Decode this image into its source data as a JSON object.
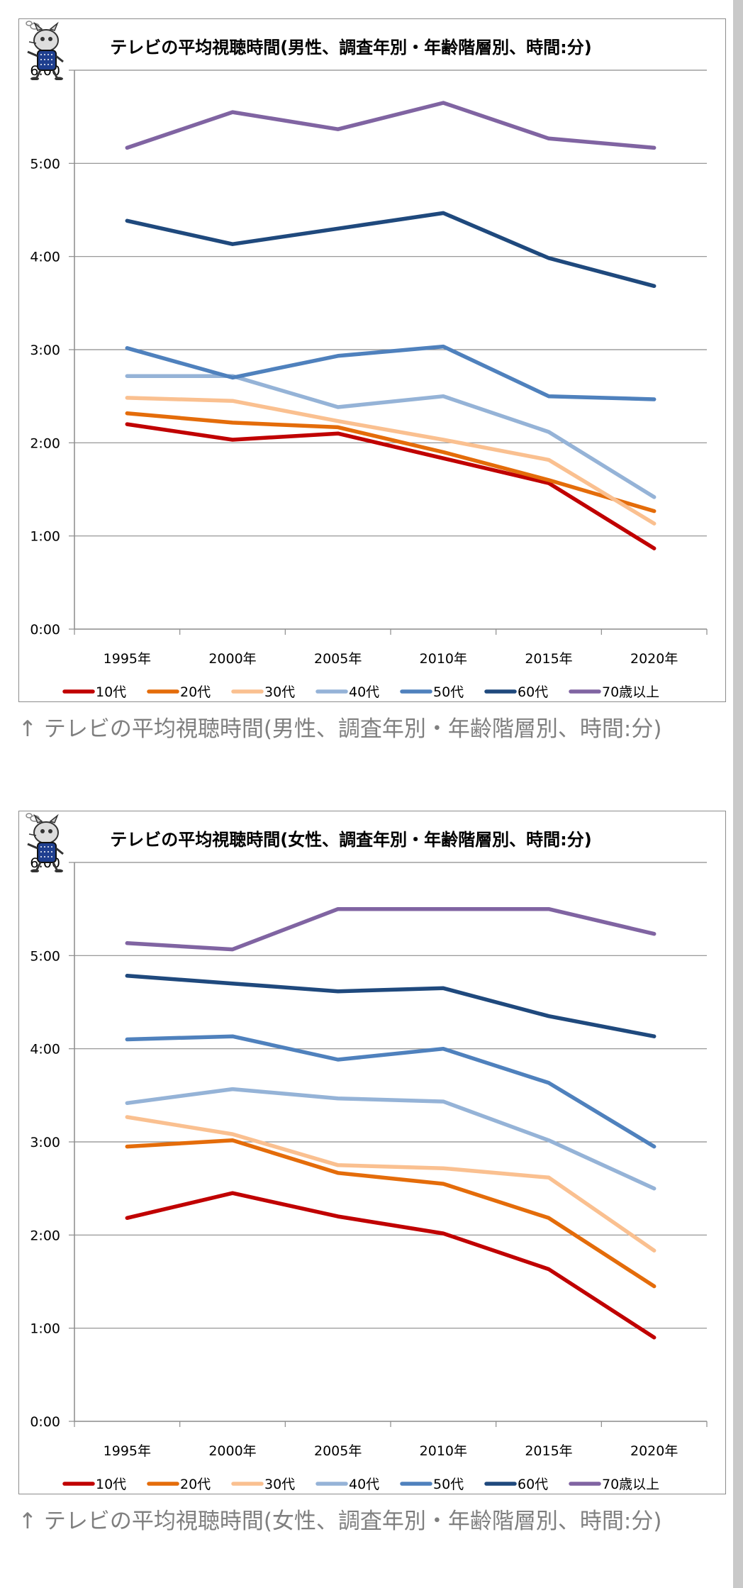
{
  "chart_data": [
    {
      "type": "line",
      "title": "テレビの平均視聴時間(男性、調査年別・年齢階層別、時間:分)",
      "x": [
        "1995年",
        "2000年",
        "2005年",
        "2010年",
        "2015年",
        "2020年"
      ],
      "ylim": [
        0,
        360
      ],
      "y_unit": "minutes",
      "y_ticks": [
        "0:00",
        "1:00",
        "2:00",
        "3:00",
        "4:00",
        "5:00",
        "6:00"
      ],
      "grid": true,
      "legend_position": "bottom",
      "series": [
        {
          "name": "10代",
          "color": "#c00000",
          "values": [
            132,
            122,
            126,
            110,
            94,
            52
          ]
        },
        {
          "name": "20代",
          "color": "#e46c0a",
          "values": [
            139,
            133,
            130,
            114,
            96,
            76
          ]
        },
        {
          "name": "30代",
          "color": "#fac090",
          "values": [
            149,
            147,
            134,
            122,
            109,
            68
          ]
        },
        {
          "name": "40代",
          "color": "#95b3d7",
          "values": [
            163,
            163,
            143,
            150,
            127,
            85
          ]
        },
        {
          "name": "50代",
          "color": "#4f81bd",
          "values": [
            181,
            162,
            176,
            182,
            150,
            148
          ]
        },
        {
          "name": "60代",
          "color": "#1f497d",
          "values": [
            263,
            248,
            258,
            268,
            239,
            221
          ]
        },
        {
          "name": "70歳以上",
          "color": "#8064a2",
          "values": [
            310,
            333,
            322,
            339,
            316,
            310
          ]
        }
      ]
    },
    {
      "type": "line",
      "title": "テレビの平均視聴時間(女性、調査年別・年齢階層別、時間:分)",
      "x": [
        "1995年",
        "2000年",
        "2005年",
        "2010年",
        "2015年",
        "2020年"
      ],
      "ylim": [
        0,
        360
      ],
      "y_unit": "minutes",
      "y_ticks": [
        "0:00",
        "1:00",
        "2:00",
        "3:00",
        "4:00",
        "5:00",
        "6:00"
      ],
      "grid": true,
      "legend_position": "bottom",
      "series": [
        {
          "name": "10代",
          "color": "#c00000",
          "values": [
            131,
            147,
            132,
            121,
            98,
            54
          ]
        },
        {
          "name": "20代",
          "color": "#e46c0a",
          "values": [
            177,
            181,
            160,
            153,
            131,
            87
          ]
        },
        {
          "name": "30代",
          "color": "#fac090",
          "values": [
            196,
            185,
            165,
            163,
            157,
            110
          ]
        },
        {
          "name": "40代",
          "color": "#95b3d7",
          "values": [
            205,
            214,
            208,
            206,
            181,
            150
          ]
        },
        {
          "name": "50代",
          "color": "#4f81bd",
          "values": [
            246,
            248,
            233,
            240,
            218,
            177
          ]
        },
        {
          "name": "60代",
          "color": "#1f497d",
          "values": [
            287,
            282,
            277,
            279,
            261,
            248
          ]
        },
        {
          "name": "70歳以上",
          "color": "#8064a2",
          "values": [
            308,
            304,
            330,
            330,
            330,
            314
          ]
        }
      ]
    }
  ],
  "captions": [
    "↑ テレビの平均視聴時間(男性、調査年別・年齢階層別、時間:分)",
    "↑ テレビの平均視聴時間(女性、調査年別・年齢階層別、時間:分)"
  ]
}
